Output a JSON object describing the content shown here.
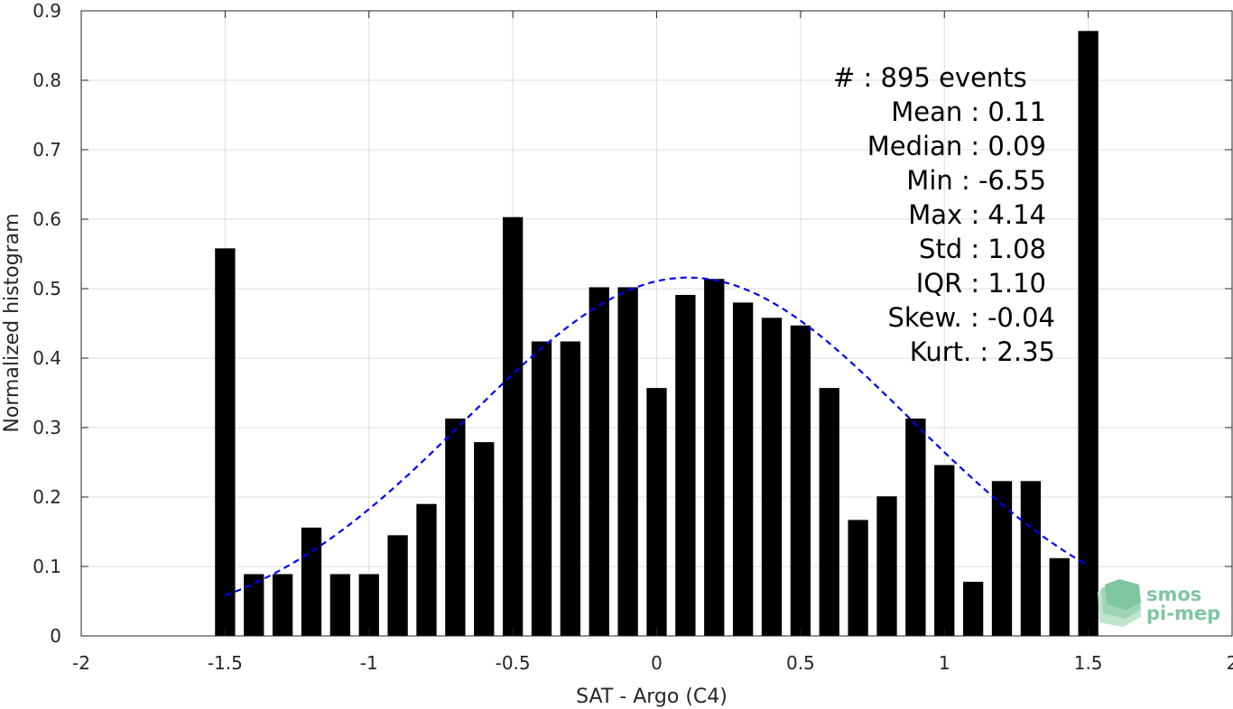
{
  "chart_data": {
    "type": "bar",
    "xlabel": "SAT - Argo (C4)",
    "ylabel": "Normalized histogram",
    "xlim": [
      -2,
      2
    ],
    "ylim": [
      0,
      0.9
    ],
    "xticks": [
      -2,
      -1.5,
      -1,
      -0.5,
      0,
      0.5,
      1,
      1.5,
      2
    ],
    "xtick_labels": [
      "-2",
      "-1.5",
      "-1",
      "-0.5",
      "0",
      "0.5",
      "1",
      "1.5",
      "2"
    ],
    "yticks": [
      0,
      0.1,
      0.2,
      0.3,
      0.4,
      0.5,
      0.6,
      0.7,
      0.8,
      0.9
    ],
    "ytick_labels": [
      "0",
      "0.1",
      "0.2",
      "0.3",
      "0.4",
      "0.5",
      "0.6",
      "0.7",
      "0.8",
      "0.9"
    ],
    "grid": true,
    "bar_width": 0.07,
    "x": [
      -1.5,
      -1.4,
      -1.3,
      -1.2,
      -1.1,
      -1.0,
      -0.9,
      -0.8,
      -0.7,
      -0.6,
      -0.5,
      -0.4,
      -0.3,
      -0.2,
      -0.1,
      0.0,
      0.1,
      0.2,
      0.3,
      0.4,
      0.5,
      0.6,
      0.7,
      0.8,
      0.9,
      1.0,
      1.1,
      1.2,
      1.3,
      1.4,
      1.5
    ],
    "values": [
      0.558,
      0.089,
      0.089,
      0.156,
      0.089,
      0.089,
      0.145,
      0.19,
      0.313,
      0.279,
      0.603,
      0.424,
      0.424,
      0.502,
      0.502,
      0.357,
      0.491,
      0.514,
      0.48,
      0.458,
      0.447,
      0.357,
      0.167,
      0.201,
      0.313,
      0.246,
      0.078,
      0.223,
      0.223,
      0.112,
      0.871
    ],
    "bar_color": "#000000",
    "fit": {
      "type": "gaussian",
      "mean": 0.11,
      "std": 0.77,
      "peak": 0.516,
      "x_range": [
        -1.5,
        1.5
      ],
      "color": "#0000ff",
      "style": "dashed"
    },
    "stats": [
      "#  : 895 events",
      "Mean : 0.11",
      "Median : 0.09",
      "Min : -6.55",
      "Max : 4.14",
      "Std : 1.08",
      "IQR : 1.10",
      "Skew. : -0.04",
      "Kurt. : 2.35"
    ]
  },
  "logo": {
    "line1": "smos",
    "line2": "pi-mep",
    "color": "#7fc6a0"
  }
}
